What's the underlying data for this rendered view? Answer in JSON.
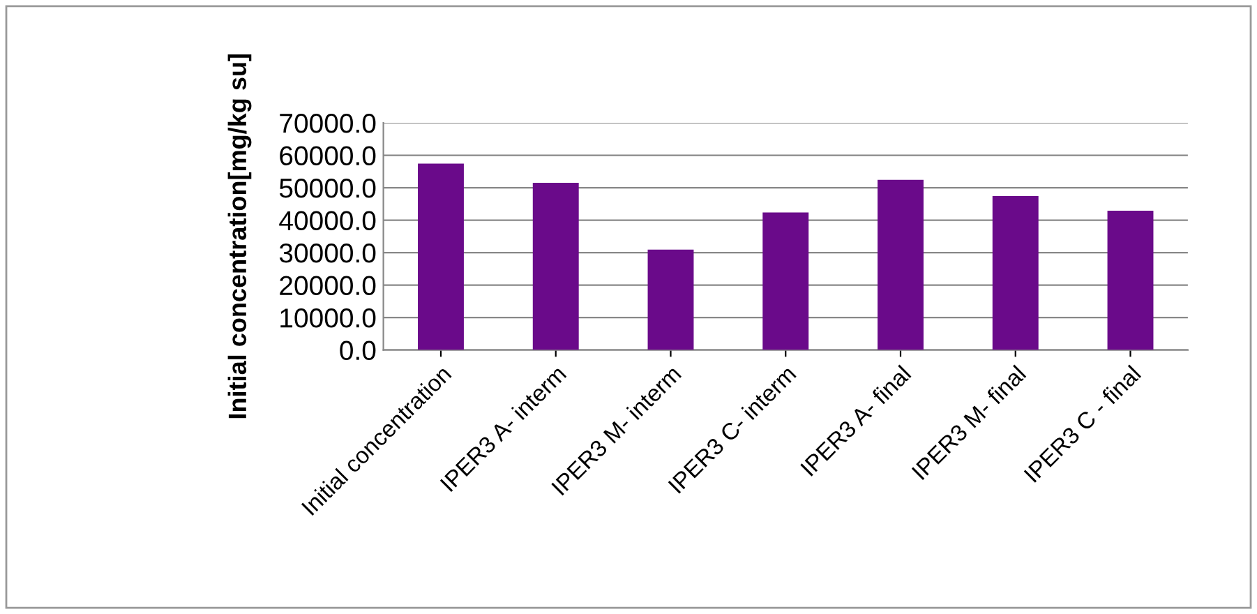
{
  "chart_data": {
    "type": "bar",
    "ylabel": "Initial concentration[mg/kg su]",
    "categories": [
      "Initial concentration",
      "IPER3 A- interm",
      "IPER3 M- interm",
      "IPER3 C- interm",
      "IPER3 A- final",
      "IPER3 M- final",
      "IPER3 C - final"
    ],
    "values": [
      57400,
      51500,
      30900,
      42400,
      52400,
      47400,
      42900
    ],
    "color": "#6a0a8a",
    "ylim": [
      0,
      70000
    ],
    "yticks": [
      {
        "value": 0,
        "label": "0.0"
      },
      {
        "value": 10000,
        "label": "10000.0"
      },
      {
        "value": 20000,
        "label": "20000.0"
      },
      {
        "value": 30000,
        "label": "30000.0"
      },
      {
        "value": 40000,
        "label": "40000.0"
      },
      {
        "value": 50000,
        "label": "50000.0"
      },
      {
        "value": 60000,
        "label": "60000.0"
      },
      {
        "value": 70000,
        "label": "70000.0"
      }
    ],
    "grid": "y"
  }
}
